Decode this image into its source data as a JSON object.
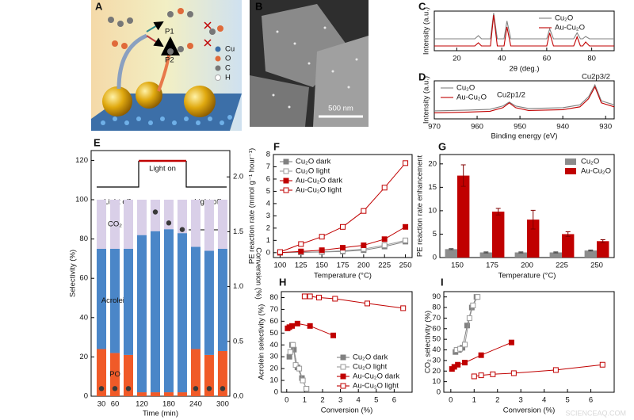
{
  "figure": {
    "panel_a": {
      "letter": "A",
      "products": [
        "P1",
        "P2"
      ],
      "legend": [
        "Cu",
        "O",
        "C",
        "H"
      ]
    },
    "panel_b": {
      "letter": "B",
      "scale_bar": "500 nm"
    },
    "watermark": "SCIENCEAQ.COM"
  },
  "chart_data": [
    {
      "type": "line",
      "panel": "C",
      "xlabel": "2θ (deg.)",
      "ylabel": "Intensity (a.u.)",
      "x": [
        10,
        28,
        29.6,
        31,
        35,
        36.4,
        38,
        41,
        42.3,
        44,
        60,
        61.3,
        63,
        72,
        73.5,
        75,
        76,
        77.3,
        79,
        90
      ],
      "xlim": [
        10,
        90
      ],
      "ylim": [
        0,
        1
      ],
      "xticks": [
        20,
        40,
        60,
        80
      ],
      "legend": "top-right",
      "series": [
        {
          "name": "Cu₂O",
          "color": "#808080",
          "values": [
            0.3,
            0.3,
            0.38,
            0.3,
            0.3,
            0.95,
            0.3,
            0.3,
            0.75,
            0.3,
            0.3,
            0.55,
            0.3,
            0.3,
            0.45,
            0.3,
            0.3,
            0.36,
            0.3,
            0.3
          ]
        },
        {
          "name": "Au-Cu₂O",
          "color": "#c00000",
          "values": [
            0.12,
            0.12,
            0.2,
            0.12,
            0.12,
            0.9,
            0.12,
            0.12,
            0.6,
            0.12,
            0.12,
            0.45,
            0.12,
            0.12,
            0.35,
            0.12,
            0.12,
            0.22,
            0.12,
            0.12
          ]
        }
      ]
    },
    {
      "type": "line",
      "panel": "D",
      "xlabel": "Binding energy (eV)",
      "ylabel": "Intensity (a.u.)",
      "x": [
        970,
        962,
        957,
        954,
        952.5,
        951,
        948,
        940,
        936,
        934,
        932.5,
        931,
        928
      ],
      "xlim": [
        970,
        928
      ],
      "ylim": [
        0.1,
        1.05
      ],
      "xticks": [
        970,
        960,
        950,
        940,
        930
      ],
      "legend": "top-left",
      "annotations": [
        "Cu2p1/2",
        "Cu2p3/2"
      ],
      "series": [
        {
          "name": "Cu₂O",
          "color": "#808080",
          "values": [
            0.3,
            0.32,
            0.34,
            0.42,
            0.52,
            0.42,
            0.36,
            0.38,
            0.45,
            0.65,
            0.95,
            0.55,
            0.45
          ]
        },
        {
          "name": "Au-Cu₂O",
          "color": "#c00000",
          "values": [
            0.25,
            0.27,
            0.29,
            0.38,
            0.5,
            0.38,
            0.31,
            0.33,
            0.4,
            0.6,
            0.9,
            0.5,
            0.4
          ]
        }
      ]
    },
    {
      "type": "stacked_bar",
      "panel": "E",
      "xlabel": "Time (min)",
      "ylabel": "Selectivity (%)",
      "y2label": "Conversion (%)",
      "x": [
        30,
        60,
        90,
        120,
        150,
        180,
        210,
        240,
        270,
        300
      ],
      "xlim": [
        7,
        316
      ],
      "ylim": [
        0,
        125
      ],
      "y2lim": [
        0,
        2.24
      ],
      "xticks": [
        30,
        60,
        120,
        180,
        240,
        300
      ],
      "yticks": [
        0,
        20,
        40,
        60,
        80,
        100,
        120
      ],
      "y2ticks": [
        {
          "value": 0,
          "label": "0.0"
        },
        0.5,
        {
          "value": 1,
          "label": "1.0"
        },
        1.5,
        {
          "value": 2,
          "label": "2.0"
        }
      ],
      "legend": "inside",
      "annotations": [
        "Light off",
        "Light on",
        "Light off"
      ],
      "series": [
        {
          "name": "PO",
          "color": "#f05a28",
          "values": [
            24,
            22,
            21,
            2,
            2,
            2,
            2,
            24,
            21,
            23
          ]
        },
        {
          "name": "Acrolein",
          "color": "#4a86c8",
          "values": [
            51,
            53,
            54,
            80,
            82,
            83,
            81,
            52,
            53,
            52
          ]
        },
        {
          "name": "CO₂",
          "color": "#d9cfe8",
          "values": [
            25,
            25,
            25,
            18,
            16,
            15,
            17,
            24,
            26,
            25
          ]
        },
        {
          "color": "#3a3a3a",
          "axis": "y2",
          "values": [
            0.07,
            0.07,
            0.07,
            null,
            1.68,
            1.58,
            1.52,
            0.07,
            0.07,
            0.07
          ]
        }
      ]
    },
    {
      "type": "line",
      "panel": "F",
      "xlabel": "Temperature (°C)",
      "ylabel": "PE reaction rate (mmol g⁻¹ hour⁻¹)",
      "x": [
        100,
        125,
        150,
        175,
        200,
        225,
        250
      ],
      "xlim": [
        92,
        258
      ],
      "ylim": [
        -0.4,
        8
      ],
      "xticks": [
        100,
        125,
        150,
        175,
        200,
        225,
        250
      ],
      "yticks": [
        0,
        1,
        2,
        3,
        4,
        5,
        6,
        7,
        8
      ],
      "legend": "top-left",
      "series": [
        {
          "name": "Cu₂O dark",
          "color": "#808080",
          "marker": "filled",
          "values": [
            0,
            0.02,
            0.05,
            0.1,
            0.2,
            0.5,
            0.9
          ]
        },
        {
          "name": "Cu₂O light",
          "color": "#9a9a9a",
          "marker": "open",
          "values": [
            0,
            0.03,
            0.07,
            0.15,
            0.3,
            0.6,
            1.0
          ]
        },
        {
          "name": "Au-Cu₂O dark",
          "color": "#c00000",
          "marker": "filled",
          "values": [
            0,
            0.1,
            0.2,
            0.4,
            0.6,
            1.1,
            2.1
          ]
        },
        {
          "name": "Au-Cu₂O light",
          "color": "#c00000",
          "marker": "open",
          "values": [
            0.05,
            0.7,
            1.3,
            2.1,
            3.4,
            5.3,
            7.3
          ]
        }
      ]
    },
    {
      "type": "bar",
      "panel": "G",
      "xlabel": "Temperature (°C)",
      "ylabel": "PE reaction rate enhancement",
      "categories": [
        "150",
        "175",
        "200",
        "225",
        "250"
      ],
      "ylim": [
        0,
        22
      ],
      "yticks": [
        0,
        5,
        10,
        15,
        20
      ],
      "legend": "top-right",
      "series": [
        {
          "name": "Cu₂O",
          "color": "#8c8c8c",
          "values": [
            1.8,
            1.1,
            1.1,
            1.1,
            1.5
          ],
          "errors": [
            0.1,
            0.1,
            0.1,
            0.1,
            0.1
          ]
        },
        {
          "name": "Au-Cu₂O",
          "color": "#c00000",
          "values": [
            17.5,
            9.8,
            8.1,
            5.0,
            3.5
          ],
          "errors": [
            2.3,
            0.7,
            2.0,
            0.5,
            0.3
          ]
        }
      ]
    },
    {
      "type": "line",
      "panel": "H",
      "xlabel": "Conversion (%)",
      "ylabel": "Acrolein selectivity (%)",
      "xlim": [
        -0.3,
        7
      ],
      "ylim": [
        0,
        85
      ],
      "xticks": [
        0,
        1,
        2,
        3,
        4,
        5,
        6
      ],
      "yticks": [
        0,
        10,
        20,
        30,
        40,
        50,
        60,
        70,
        80
      ],
      "legend": "bottom-right",
      "series": [
        {
          "name": "Cu₂O dark",
          "color": "#808080",
          "marker": "filled",
          "x": [
            0.15,
            0.3,
            0.4,
            0.6,
            0.85,
            1.1
          ],
          "values": [
            30,
            40,
            36,
            21,
            12,
            3
          ]
        },
        {
          "name": "Cu₂O light",
          "color": "#9a9a9a",
          "marker": "open",
          "x": [
            0.2,
            0.35,
            0.5,
            0.7,
            0.9,
            1.1
          ],
          "values": [
            34,
            40,
            23,
            20,
            10,
            3
          ]
        },
        {
          "name": "Au-Cu₂O dark",
          "color": "#c00000",
          "marker": "filled",
          "x": [
            0.05,
            0.15,
            0.3,
            0.6,
            1.3,
            2.6
          ],
          "values": [
            54,
            55,
            56,
            58,
            56,
            48
          ]
        },
        {
          "name": "Au-Cu₂O light",
          "color": "#c00000",
          "marker": "open",
          "x": [
            1.0,
            1.3,
            1.8,
            2.7,
            4.5,
            6.5
          ],
          "values": [
            81,
            81,
            80,
            79,
            75,
            71
          ]
        }
      ]
    },
    {
      "type": "line",
      "panel": "I",
      "xlabel": "Conversion (%)",
      "ylabel": "CO₂ selectivity (%)",
      "xlim": [
        -0.3,
        7
      ],
      "ylim": [
        0,
        95
      ],
      "xticks": [
        0,
        1,
        2,
        3,
        4,
        5,
        6
      ],
      "yticks": [
        0,
        10,
        20,
        30,
        40,
        50,
        60,
        70,
        80,
        90
      ],
      "series": [
        {
          "color": "#808080",
          "marker": "filled",
          "x": [
            0.2,
            0.35,
            0.5,
            0.7,
            0.9,
            1.1
          ],
          "values": [
            38,
            40,
            42,
            63,
            80,
            90
          ]
        },
        {
          "color": "#9a9a9a",
          "marker": "open",
          "x": [
            0.25,
            0.4,
            0.6,
            0.8,
            0.95,
            1.15
          ],
          "values": [
            40,
            41,
            45,
            70,
            82,
            90
          ]
        },
        {
          "color": "#c00000",
          "marker": "filled",
          "x": [
            0.05,
            0.15,
            0.3,
            0.6,
            1.3,
            2.6
          ],
          "values": [
            22,
            24,
            26,
            28,
            35,
            47
          ]
        },
        {
          "color": "#c00000",
          "marker": "open",
          "x": [
            1.0,
            1.3,
            1.8,
            2.7,
            4.5,
            6.5
          ],
          "values": [
            15,
            16,
            17,
            18,
            21,
            26
          ]
        }
      ]
    }
  ]
}
